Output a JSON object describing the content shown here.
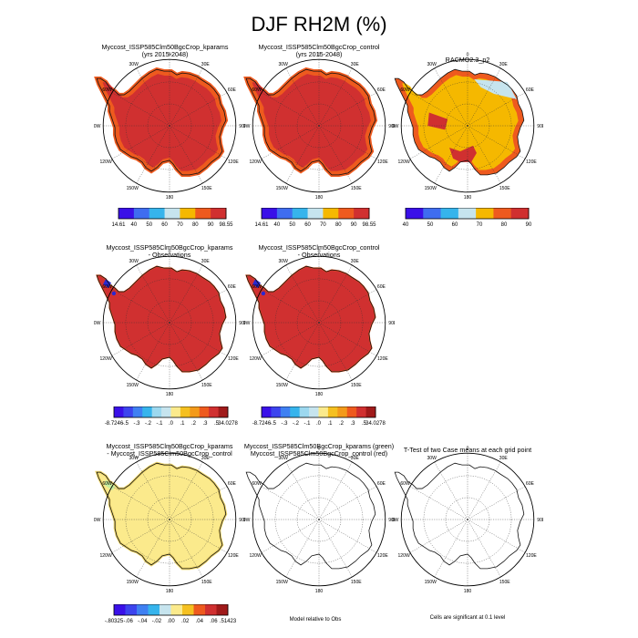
{
  "title": "DJF RH2M (%)",
  "colors": {
    "land_red": "#d03030",
    "edge_orange": "#ee5a1e",
    "edge_yellow": "#f7b21a",
    "racmo_yellow": "#f5b800",
    "light_blue": "#c6e4ee",
    "diff_yellow": "#fbea8c",
    "diff_green": "#c8f0a0",
    "obs_blue": "#2a28d0"
  },
  "panels": [
    {
      "id": "p1",
      "title_lines": [
        "Myccost_ISSP585Clm50BgcCrop_kparams",
        "(yrs 2015-2048)"
      ]
    },
    {
      "id": "p2",
      "title_lines": [
        "Myccost_ISSP585Clm50BgcCrop_control",
        "(yrs 2015-2048)"
      ]
    },
    {
      "id": "p3",
      "title_lines": [
        "RACMO2.3_p2"
      ]
    },
    {
      "id": "p4",
      "title_lines": [
        "Myccost_ISSP585Clm50BgcCrop_kparams",
        "- Observations"
      ]
    },
    {
      "id": "p5",
      "title_lines": [
        "Myccost_ISSP585Clm50BgcCrop_control",
        "- Observations"
      ]
    },
    {
      "id": "p7",
      "title_lines": [
        "Myccost_ISSP585Clm50BgcCrop_kparams",
        "- Myccost_ISSP585Clm50BgcCrop_control"
      ]
    },
    {
      "id": "p8",
      "title_lines": [
        "Myccost_ISSP585Clm50BgcCrop_kparams (green)",
        "Myccost_ISSP585Clm50BgcCrop_control (red)"
      ]
    },
    {
      "id": "p9",
      "title_lines": [
        "T-Test of two Case means at each grid point"
      ]
    }
  ],
  "map_labels": {
    "top": "0",
    "bottom": "180",
    "left": "90W",
    "right": "90E",
    "upper_left": "30W",
    "upper_right": "30E",
    "left_upper": "60W",
    "right_upper": "60E",
    "left_lower": "120W",
    "right_lower": "120E",
    "lower_left": "150W",
    "lower_right": "150E"
  },
  "chart_data": [
    {
      "type": "heatmap",
      "panel": "p1",
      "title": "Myccost_ISSP585Clm50BgcCrop_kparams (yrs 2015-2048)",
      "colorbar": {
        "labels": [
          "14.61",
          "40",
          "50",
          "60",
          "70",
          "80",
          "90",
          "98.55"
        ],
        "colors": [
          "#3a10e8",
          "#3f6df0",
          "#36b4ec",
          "#c6e4ee",
          "#f5b800",
          "#ee5a1e",
          "#d03030"
        ]
      }
    },
    {
      "type": "heatmap",
      "panel": "p2",
      "title": "Myccost_ISSP585Clm50BgcCrop_control (yrs 2015-2048)",
      "colorbar": {
        "labels": [
          "14.61",
          "40",
          "50",
          "60",
          "70",
          "80",
          "90",
          "98.55"
        ],
        "colors": [
          "#3a10e8",
          "#3f6df0",
          "#36b4ec",
          "#c6e4ee",
          "#f5b800",
          "#ee5a1e",
          "#d03030"
        ]
      }
    },
    {
      "type": "heatmap",
      "panel": "p3",
      "title": "RACMO2.3_p2",
      "colorbar": {
        "labels": [
          "40",
          "50",
          "60",
          "70",
          "80",
          "90"
        ],
        "colors": [
          "#3a10e8",
          "#3f6df0",
          "#36b4ec",
          "#c6e4ee",
          "#f5b800",
          "#ee5a1e",
          "#d03030"
        ]
      }
    },
    {
      "type": "heatmap",
      "panel": "p4",
      "title": "Myccost_ISSP585Clm50BgcCrop_kparams - Observations",
      "colorbar": {
        "labels": [
          "-8.7246",
          "-.5",
          "-.3",
          "-.2",
          "-.1",
          ".0",
          ".1",
          ".2",
          ".3",
          ".5",
          "34.0278"
        ],
        "colors": [
          "#3a10e8",
          "#3c44ee",
          "#3f80f2",
          "#36b4ec",
          "#9cd8ef",
          "#c6e4ee",
          "#fbea8c",
          "#f5c020",
          "#f39a1a",
          "#ee5a1e",
          "#d03030",
          "#a01a1a"
        ]
      }
    },
    {
      "type": "heatmap",
      "panel": "p5",
      "title": "Myccost_ISSP585Clm50BgcCrop_control - Observations",
      "colorbar": {
        "labels": [
          "-8.7246",
          "-.5",
          "-.3",
          "-.2",
          "-.1",
          ".0",
          ".1",
          ".2",
          ".3",
          ".5",
          "34.0278"
        ],
        "colors": [
          "#3a10e8",
          "#3c44ee",
          "#3f80f2",
          "#36b4ec",
          "#9cd8ef",
          "#c6e4ee",
          "#fbea8c",
          "#f5c020",
          "#f39a1a",
          "#ee5a1e",
          "#d03030",
          "#a01a1a"
        ]
      }
    },
    {
      "type": "heatmap",
      "panel": "p7",
      "title": "Myccost_ISSP585Clm50BgcCrop_kparams - Myccost_ISSP585Clm50BgcCrop_control",
      "colorbar": {
        "labels": [
          "-.80325",
          "-.06",
          "-.04",
          "-.02",
          ".00",
          ".02",
          ".04",
          ".06",
          ".51423"
        ],
        "colors": [
          "#3a10e8",
          "#3c44ee",
          "#3f80f2",
          "#36b4ec",
          "#c6e4ee",
          "#fbea8c",
          "#f5c020",
          "#ee5a1e",
          "#d03030",
          "#a01a1a"
        ]
      }
    }
  ],
  "notes": {
    "p8": "Model relative to Obs",
    "p9": "Cells are significant at 0.1 level"
  }
}
